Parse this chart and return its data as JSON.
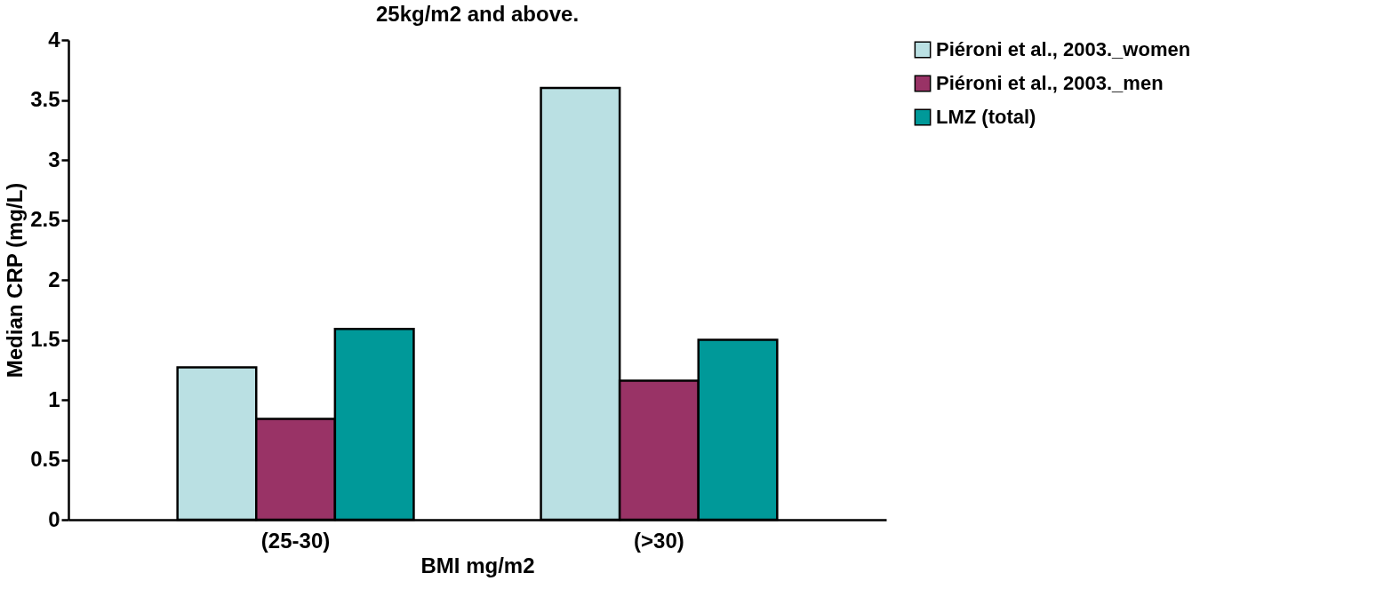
{
  "chart_data": {
    "type": "bar",
    "title": "25kg/m2 and above.",
    "xlabel": "BMI mg/m2",
    "ylabel": "Median CRP (mg/L)",
    "categories": [
      "(25-30)",
      "(>30)"
    ],
    "series": [
      {
        "name": "Piéroni et al., 2003._women",
        "color": "#bae0e3",
        "values": [
          1.27,
          3.6
        ]
      },
      {
        "name": "Piéroni et al., 2003._men",
        "color": "#993366",
        "values": [
          0.84,
          1.16
        ]
      },
      {
        "name": " LMZ (total)",
        "color": "#009999",
        "values": [
          1.59,
          1.5
        ]
      }
    ],
    "ylim": [
      0,
      4
    ],
    "yticks": [
      0,
      0.5,
      1,
      1.5,
      2,
      2.5,
      3,
      3.5,
      4
    ],
    "grid": false,
    "legend": "top right"
  }
}
